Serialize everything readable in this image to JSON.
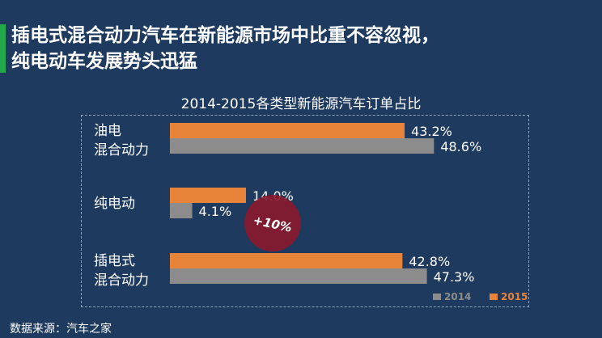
{
  "headline": {
    "line1": "插电式混合动力汽车在新能源市场中比重不容忽视，",
    "line2": "纯电动车发展势头迅猛"
  },
  "source": "数据来源：汽车之家",
  "colors": {
    "background": "#1e3a5e",
    "accent": "#22a84a",
    "series_2015": "#e8843a",
    "series_2014": "#8c8c8c",
    "badge": "#8a1a2e"
  },
  "annotation": {
    "text": "+10%"
  },
  "chart_data": {
    "type": "bar",
    "orientation": "horizontal",
    "title": "2014-2015各类型新能源汽车订单占比",
    "categories": [
      [
        "油电",
        "混合动力"
      ],
      [
        "纯电动"
      ],
      [
        "插电式",
        "混合动力"
      ]
    ],
    "series": [
      {
        "name": "2015",
        "values": [
          43.2,
          14.0,
          42.8
        ],
        "labels": [
          "43.2%",
          "14.0%",
          "42.8%"
        ],
        "color": "#e8843a"
      },
      {
        "name": "2014",
        "values": [
          48.6,
          4.1,
          47.3
        ],
        "labels": [
          "48.6%",
          "4.1%",
          "47.3%"
        ],
        "color": "#8c8c8c"
      }
    ],
    "legend": [
      {
        "name": "2014",
        "color": "#8c8c8c"
      },
      {
        "name": "2015",
        "color": "#e8843a"
      }
    ],
    "legend_position": "bottom-right",
    "xlim": [
      0,
      70
    ],
    "grid": false
  }
}
